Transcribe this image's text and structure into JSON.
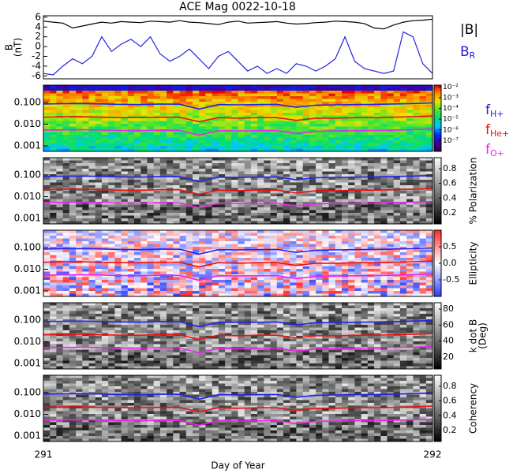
{
  "chart_data": [
    {
      "type": "line",
      "title": "ACE Mag 0022-10-18",
      "ylabel": [
        "B",
        "(nT)"
      ],
      "xlim": [
        291,
        292
      ],
      "ylim": [
        -6.6,
        6.3
      ],
      "yticks": [
        6,
        4,
        2,
        0,
        -2,
        -4,
        -6
      ],
      "x": [
        291,
        291.025,
        291.05,
        291.075,
        291.1,
        291.125,
        291.15,
        291.175,
        291.2,
        291.225,
        291.25,
        291.275,
        291.3,
        291.325,
        291.35,
        291.375,
        291.4,
        291.425,
        291.45,
        291.475,
        291.5,
        291.525,
        291.55,
        291.575,
        291.6,
        291.625,
        291.65,
        291.675,
        291.7,
        291.725,
        291.75,
        291.775,
        291.8,
        291.825,
        291.85,
        291.875,
        291.9,
        291.925,
        291.95,
        291.975,
        292
      ],
      "series": [
        {
          "name": "|B|",
          "color": "#000000",
          "values": [
            5.2,
            5.0,
            4.8,
            3.8,
            4.2,
            4.6,
            5.0,
            4.8,
            5.1,
            5.0,
            4.9,
            5.2,
            5.1,
            5.0,
            5.3,
            5.0,
            4.9,
            4.7,
            4.5,
            5.0,
            5.2,
            4.8,
            4.9,
            5.0,
            5.1,
            4.8,
            4.6,
            4.7,
            4.9,
            5.0,
            5.2,
            5.1,
            5.0,
            4.7,
            3.8,
            3.6,
            4.4,
            5.0,
            5.3,
            5.4,
            5.6
          ]
        },
        {
          "name": "B",
          "sub": "R",
          "color": "#2222dd",
          "values": [
            -5.5,
            -5.8,
            -4.0,
            -2.5,
            -3.5,
            -2.0,
            2.0,
            -1.0,
            0.5,
            1.5,
            0.0,
            2.0,
            -1.5,
            -3.0,
            -2.0,
            -0.5,
            -2.5,
            -4.5,
            -2.0,
            -1.0,
            -3.0,
            -5.0,
            -4.0,
            -5.5,
            -4.5,
            -5.5,
            -3.5,
            -4.0,
            -5.0,
            -4.0,
            -2.5,
            2.0,
            -3.0,
            -4.5,
            -5.0,
            -5.5,
            -5.0,
            3.0,
            2.0,
            -3.5,
            -5.5
          ]
        }
      ]
    },
    {
      "type": "spectrogram",
      "colormap": "rainbow",
      "xlim": [
        291,
        292
      ],
      "ylim": [
        0.00056,
        0.63
      ],
      "log_y": true,
      "yticks": [
        {
          "value": 0.1,
          "label": "0.100"
        },
        {
          "value": 0.01,
          "label": "0.010"
        },
        0.001
      ],
      "colorbar": {
        "clim": [
          1e-08,
          0.015
        ],
        "log": true,
        "ticks": [
          {
            "value": 0.01,
            "label": "10⁻²"
          },
          {
            "value": 0.001,
            "label": "10⁻³"
          },
          {
            "value": 0.0001,
            "label": "10⁻⁴"
          },
          {
            "value": 1e-05,
            "label": "10⁻⁵"
          },
          {
            "value": 1e-06,
            "label": "10⁻⁶"
          },
          {
            "value": 1e-07,
            "label": "10⁻⁷"
          }
        ]
      },
      "x": [
        291,
        291.05,
        291.1,
        291.15,
        291.2,
        291.25,
        291.3,
        291.35,
        291.4,
        291.45,
        291.5,
        291.55,
        291.6,
        291.65,
        291.7,
        291.75,
        291.8,
        291.85,
        291.9,
        291.95,
        292
      ],
      "series": [
        {
          "name": "f",
          "sub": "H+",
          "color": "#2222ee",
          "values": [
            0.085,
            0.088,
            0.09,
            0.086,
            0.082,
            0.08,
            0.085,
            0.083,
            0.05,
            0.08,
            0.078,
            0.08,
            0.082,
            0.06,
            0.075,
            0.078,
            0.08,
            0.082,
            0.085,
            0.09,
            0.095
          ]
        },
        {
          "name": "f",
          "sub": "He+",
          "color": "#ee1111",
          "values": [
            0.021,
            0.022,
            0.022,
            0.021,
            0.02,
            0.02,
            0.021,
            0.021,
            0.013,
            0.02,
            0.019,
            0.02,
            0.02,
            0.015,
            0.019,
            0.019,
            0.02,
            0.02,
            0.021,
            0.022,
            0.024
          ]
        },
        {
          "name": "f",
          "sub": "O+",
          "color": "#ee22ee",
          "values": [
            0.0053,
            0.0055,
            0.0056,
            0.0054,
            0.0051,
            0.005,
            0.0053,
            0.0052,
            0.0031,
            0.005,
            0.0049,
            0.005,
            0.0051,
            0.0037,
            0.0047,
            0.0049,
            0.005,
            0.0051,
            0.0053,
            0.0056,
            0.006
          ]
        }
      ]
    },
    {
      "type": "spectrogram",
      "colormap": "gray",
      "xlim": [
        291,
        292
      ],
      "ylim": [
        0.00056,
        0.63
      ],
      "log_y": true,
      "yticks": [
        {
          "value": 0.1,
          "label": "0.100"
        },
        {
          "value": 0.01,
          "label": "0.010"
        },
        0.001
      ],
      "colorbar": {
        "clim": [
          0.05,
          0.95
        ],
        "ticks": [
          0.8,
          0.6,
          0.4,
          0.2
        ],
        "label": [
          "% Polarization"
        ]
      },
      "x": [
        291,
        291.05,
        291.1,
        291.15,
        291.2,
        291.25,
        291.3,
        291.35,
        291.4,
        291.45,
        291.5,
        291.55,
        291.6,
        291.65,
        291.7,
        291.75,
        291.8,
        291.85,
        291.9,
        291.95,
        292
      ],
      "series": [
        {
          "color": "#2222ee",
          "values": [
            0.085,
            0.088,
            0.09,
            0.086,
            0.082,
            0.08,
            0.085,
            0.083,
            0.05,
            0.08,
            0.078,
            0.08,
            0.082,
            0.06,
            0.075,
            0.078,
            0.08,
            0.082,
            0.085,
            0.09,
            0.095
          ]
        },
        {
          "color": "#ee1111",
          "values": [
            0.021,
            0.022,
            0.022,
            0.021,
            0.02,
            0.02,
            0.021,
            0.021,
            0.013,
            0.02,
            0.019,
            0.02,
            0.02,
            0.015,
            0.019,
            0.019,
            0.02,
            0.02,
            0.021,
            0.022,
            0.024
          ]
        },
        {
          "color": "#ee22ee",
          "values": [
            0.0053,
            0.0055,
            0.0056,
            0.0054,
            0.0051,
            0.005,
            0.0053,
            0.0052,
            0.0031,
            0.005,
            0.0049,
            0.005,
            0.0051,
            0.0037,
            0.0047,
            0.0049,
            0.005,
            0.0051,
            0.0053,
            0.0056,
            0.006
          ]
        }
      ]
    },
    {
      "type": "spectrogram",
      "colormap": "bwr",
      "xlim": [
        291,
        292
      ],
      "ylim": [
        0.00056,
        0.63
      ],
      "log_y": true,
      "yticks": [
        {
          "value": 0.1,
          "label": "0.100"
        },
        {
          "value": 0.01,
          "label": "0.010"
        },
        0.001
      ],
      "colorbar": {
        "clim": [
          -1,
          1
        ],
        "ticks": [
          0.5,
          {
            "value": 0,
            "label": "0.0"
          },
          -0.5
        ],
        "label": [
          "Ellipticity"
        ]
      },
      "x": [
        291,
        291.05,
        291.1,
        291.15,
        291.2,
        291.25,
        291.3,
        291.35,
        291.4,
        291.45,
        291.5,
        291.55,
        291.6,
        291.65,
        291.7,
        291.75,
        291.8,
        291.85,
        291.9,
        291.95,
        292
      ],
      "series": [
        {
          "color": "#2222ee",
          "values": [
            0.085,
            0.088,
            0.09,
            0.086,
            0.082,
            0.08,
            0.085,
            0.083,
            0.05,
            0.08,
            0.078,
            0.08,
            0.082,
            0.06,
            0.075,
            0.078,
            0.08,
            0.082,
            0.085,
            0.09,
            0.095
          ]
        },
        {
          "color": "#ee1111",
          "values": [
            0.021,
            0.022,
            0.022,
            0.021,
            0.02,
            0.02,
            0.021,
            0.021,
            0.013,
            0.02,
            0.019,
            0.02,
            0.02,
            0.015,
            0.019,
            0.019,
            0.02,
            0.02,
            0.021,
            0.022,
            0.024
          ]
        },
        {
          "color": "#ee22ee",
          "values": [
            0.0053,
            0.0055,
            0.0056,
            0.0054,
            0.0051,
            0.005,
            0.0053,
            0.0052,
            0.0031,
            0.005,
            0.0049,
            0.005,
            0.0051,
            0.0037,
            0.0047,
            0.0049,
            0.005,
            0.0051,
            0.0053,
            0.0056,
            0.006
          ]
        }
      ]
    },
    {
      "type": "spectrogram",
      "colormap": "gray",
      "xlim": [
        291,
        292
      ],
      "ylim": [
        0.00056,
        0.63
      ],
      "log_y": true,
      "yticks": [
        {
          "value": 0.1,
          "label": "0.100"
        },
        {
          "value": 0.01,
          "label": "0.010"
        },
        0.001
      ],
      "colorbar": {
        "clim": [
          5,
          88
        ],
        "ticks": [
          80,
          60,
          40,
          20
        ],
        "label": [
          "k dot B",
          "(Deg)"
        ]
      },
      "x": [
        291,
        291.05,
        291.1,
        291.15,
        291.2,
        291.25,
        291.3,
        291.35,
        291.4,
        291.45,
        291.5,
        291.55,
        291.6,
        291.65,
        291.7,
        291.75,
        291.8,
        291.85,
        291.9,
        291.95,
        292
      ],
      "series": [
        {
          "color": "#2222ee",
          "values": [
            0.085,
            0.088,
            0.09,
            0.086,
            0.082,
            0.08,
            0.085,
            0.083,
            0.05,
            0.08,
            0.078,
            0.08,
            0.082,
            0.06,
            0.075,
            0.078,
            0.08,
            0.082,
            0.085,
            0.09,
            0.095
          ]
        },
        {
          "color": "#ee1111",
          "values": [
            0.021,
            0.022,
            0.022,
            0.021,
            0.02,
            0.02,
            0.021,
            0.021,
            0.013,
            0.02,
            0.019,
            0.02,
            0.02,
            0.015,
            0.019,
            0.019,
            0.02,
            0.02,
            0.021,
            0.022,
            0.024
          ]
        },
        {
          "color": "#ee22ee",
          "values": [
            0.0053,
            0.0055,
            0.0056,
            0.0054,
            0.0051,
            0.005,
            0.0053,
            0.0052,
            0.0031,
            0.005,
            0.0049,
            0.005,
            0.0051,
            0.0037,
            0.0047,
            0.0049,
            0.005,
            0.0051,
            0.0053,
            0.0056,
            0.006
          ]
        }
      ]
    },
    {
      "type": "spectrogram",
      "colormap": "gray",
      "xlim": [
        291,
        292
      ],
      "ylim": [
        0.00056,
        0.63
      ],
      "log_y": true,
      "yticks": [
        {
          "value": 0.1,
          "label": "0.100"
        },
        {
          "value": 0.01,
          "label": "0.010"
        },
        0.001
      ],
      "colorbar": {
        "clim": [
          0.05,
          0.95
        ],
        "ticks": [
          0.8,
          0.6,
          0.4,
          0.2
        ],
        "label": [
          "Coherency"
        ]
      },
      "xlabel": "Day of Year",
      "xticks": [
        291,
        292
      ],
      "x": [
        291,
        291.05,
        291.1,
        291.15,
        291.2,
        291.25,
        291.3,
        291.35,
        291.4,
        291.45,
        291.5,
        291.55,
        291.6,
        291.65,
        291.7,
        291.75,
        291.8,
        291.85,
        291.9,
        291.95,
        292
      ],
      "series": [
        {
          "color": "#2222ee",
          "values": [
            0.085,
            0.088,
            0.09,
            0.086,
            0.082,
            0.08,
            0.085,
            0.083,
            0.05,
            0.08,
            0.078,
            0.08,
            0.082,
            0.06,
            0.075,
            0.078,
            0.08,
            0.082,
            0.085,
            0.09,
            0.095
          ]
        },
        {
          "color": "#ee1111",
          "values": [
            0.021,
            0.022,
            0.022,
            0.021,
            0.02,
            0.02,
            0.021,
            0.021,
            0.013,
            0.02,
            0.019,
            0.02,
            0.02,
            0.015,
            0.019,
            0.019,
            0.02,
            0.02,
            0.021,
            0.022,
            0.024
          ]
        },
        {
          "color": "#ee22ee",
          "values": [
            0.0053,
            0.0055,
            0.0056,
            0.0054,
            0.0051,
            0.005,
            0.0053,
            0.0052,
            0.0031,
            0.005,
            0.0049,
            0.005,
            0.0051,
            0.0037,
            0.0047,
            0.0049,
            0.005,
            0.0051,
            0.0053,
            0.0056,
            0.006
          ]
        }
      ]
    }
  ]
}
